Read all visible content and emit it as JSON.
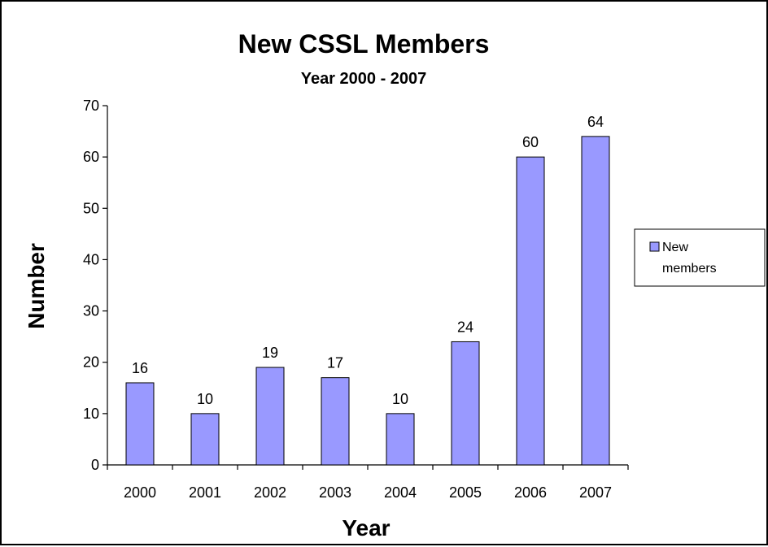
{
  "chart_data": {
    "type": "bar",
    "title": "New CSSL Members",
    "subtitle": "Year 2000 - 2007",
    "xlabel": "Year",
    "ylabel": "Number",
    "categories": [
      "2000",
      "2001",
      "2002",
      "2003",
      "2004",
      "2005",
      "2006",
      "2007"
    ],
    "series": [
      {
        "name": "New members",
        "values": [
          16,
          10,
          19,
          17,
          10,
          24,
          60,
          64
        ]
      }
    ],
    "legend_lines": [
      "New",
      "members"
    ],
    "yticks": [
      "0",
      "10",
      "20",
      "30",
      "40",
      "50",
      "60",
      "70"
    ],
    "ylim": [
      0,
      70
    ],
    "grid": false,
    "legend_position": "right",
    "colors": {
      "bar_fill": "#9999ff",
      "bar_stroke": "#000000"
    }
  }
}
